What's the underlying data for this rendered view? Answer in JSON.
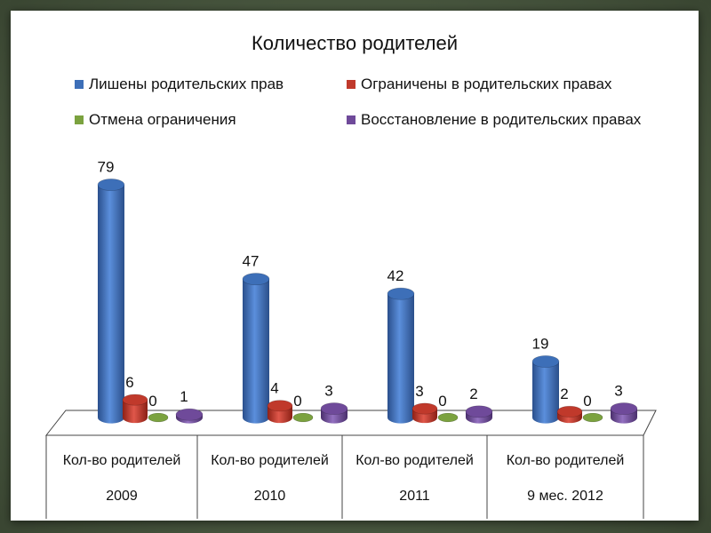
{
  "chart_data": {
    "type": "bar",
    "title": "Количество родителей",
    "row_label": "Кол-во родителей",
    "categories": [
      "2009",
      "2010",
      "2011",
      "9 мес. 2012"
    ],
    "series": [
      {
        "name": "Лишены родительских прав",
        "values": [
          79,
          47,
          42,
          19
        ],
        "color": "#3d6fb8"
      },
      {
        "name": "Ограничены в родительских правах",
        "values": [
          6,
          4,
          3,
          2
        ],
        "color": "#c0392b"
      },
      {
        "name": "Отмена ограничения",
        "values": [
          0,
          0,
          0,
          0
        ],
        "color": "#7ba23f"
      },
      {
        "name": "Восстановление в  родительских правах",
        "values": [
          1,
          3,
          2,
          3
        ],
        "color": "#6f4a9a"
      }
    ],
    "legend_position": "top",
    "grid": false
  }
}
